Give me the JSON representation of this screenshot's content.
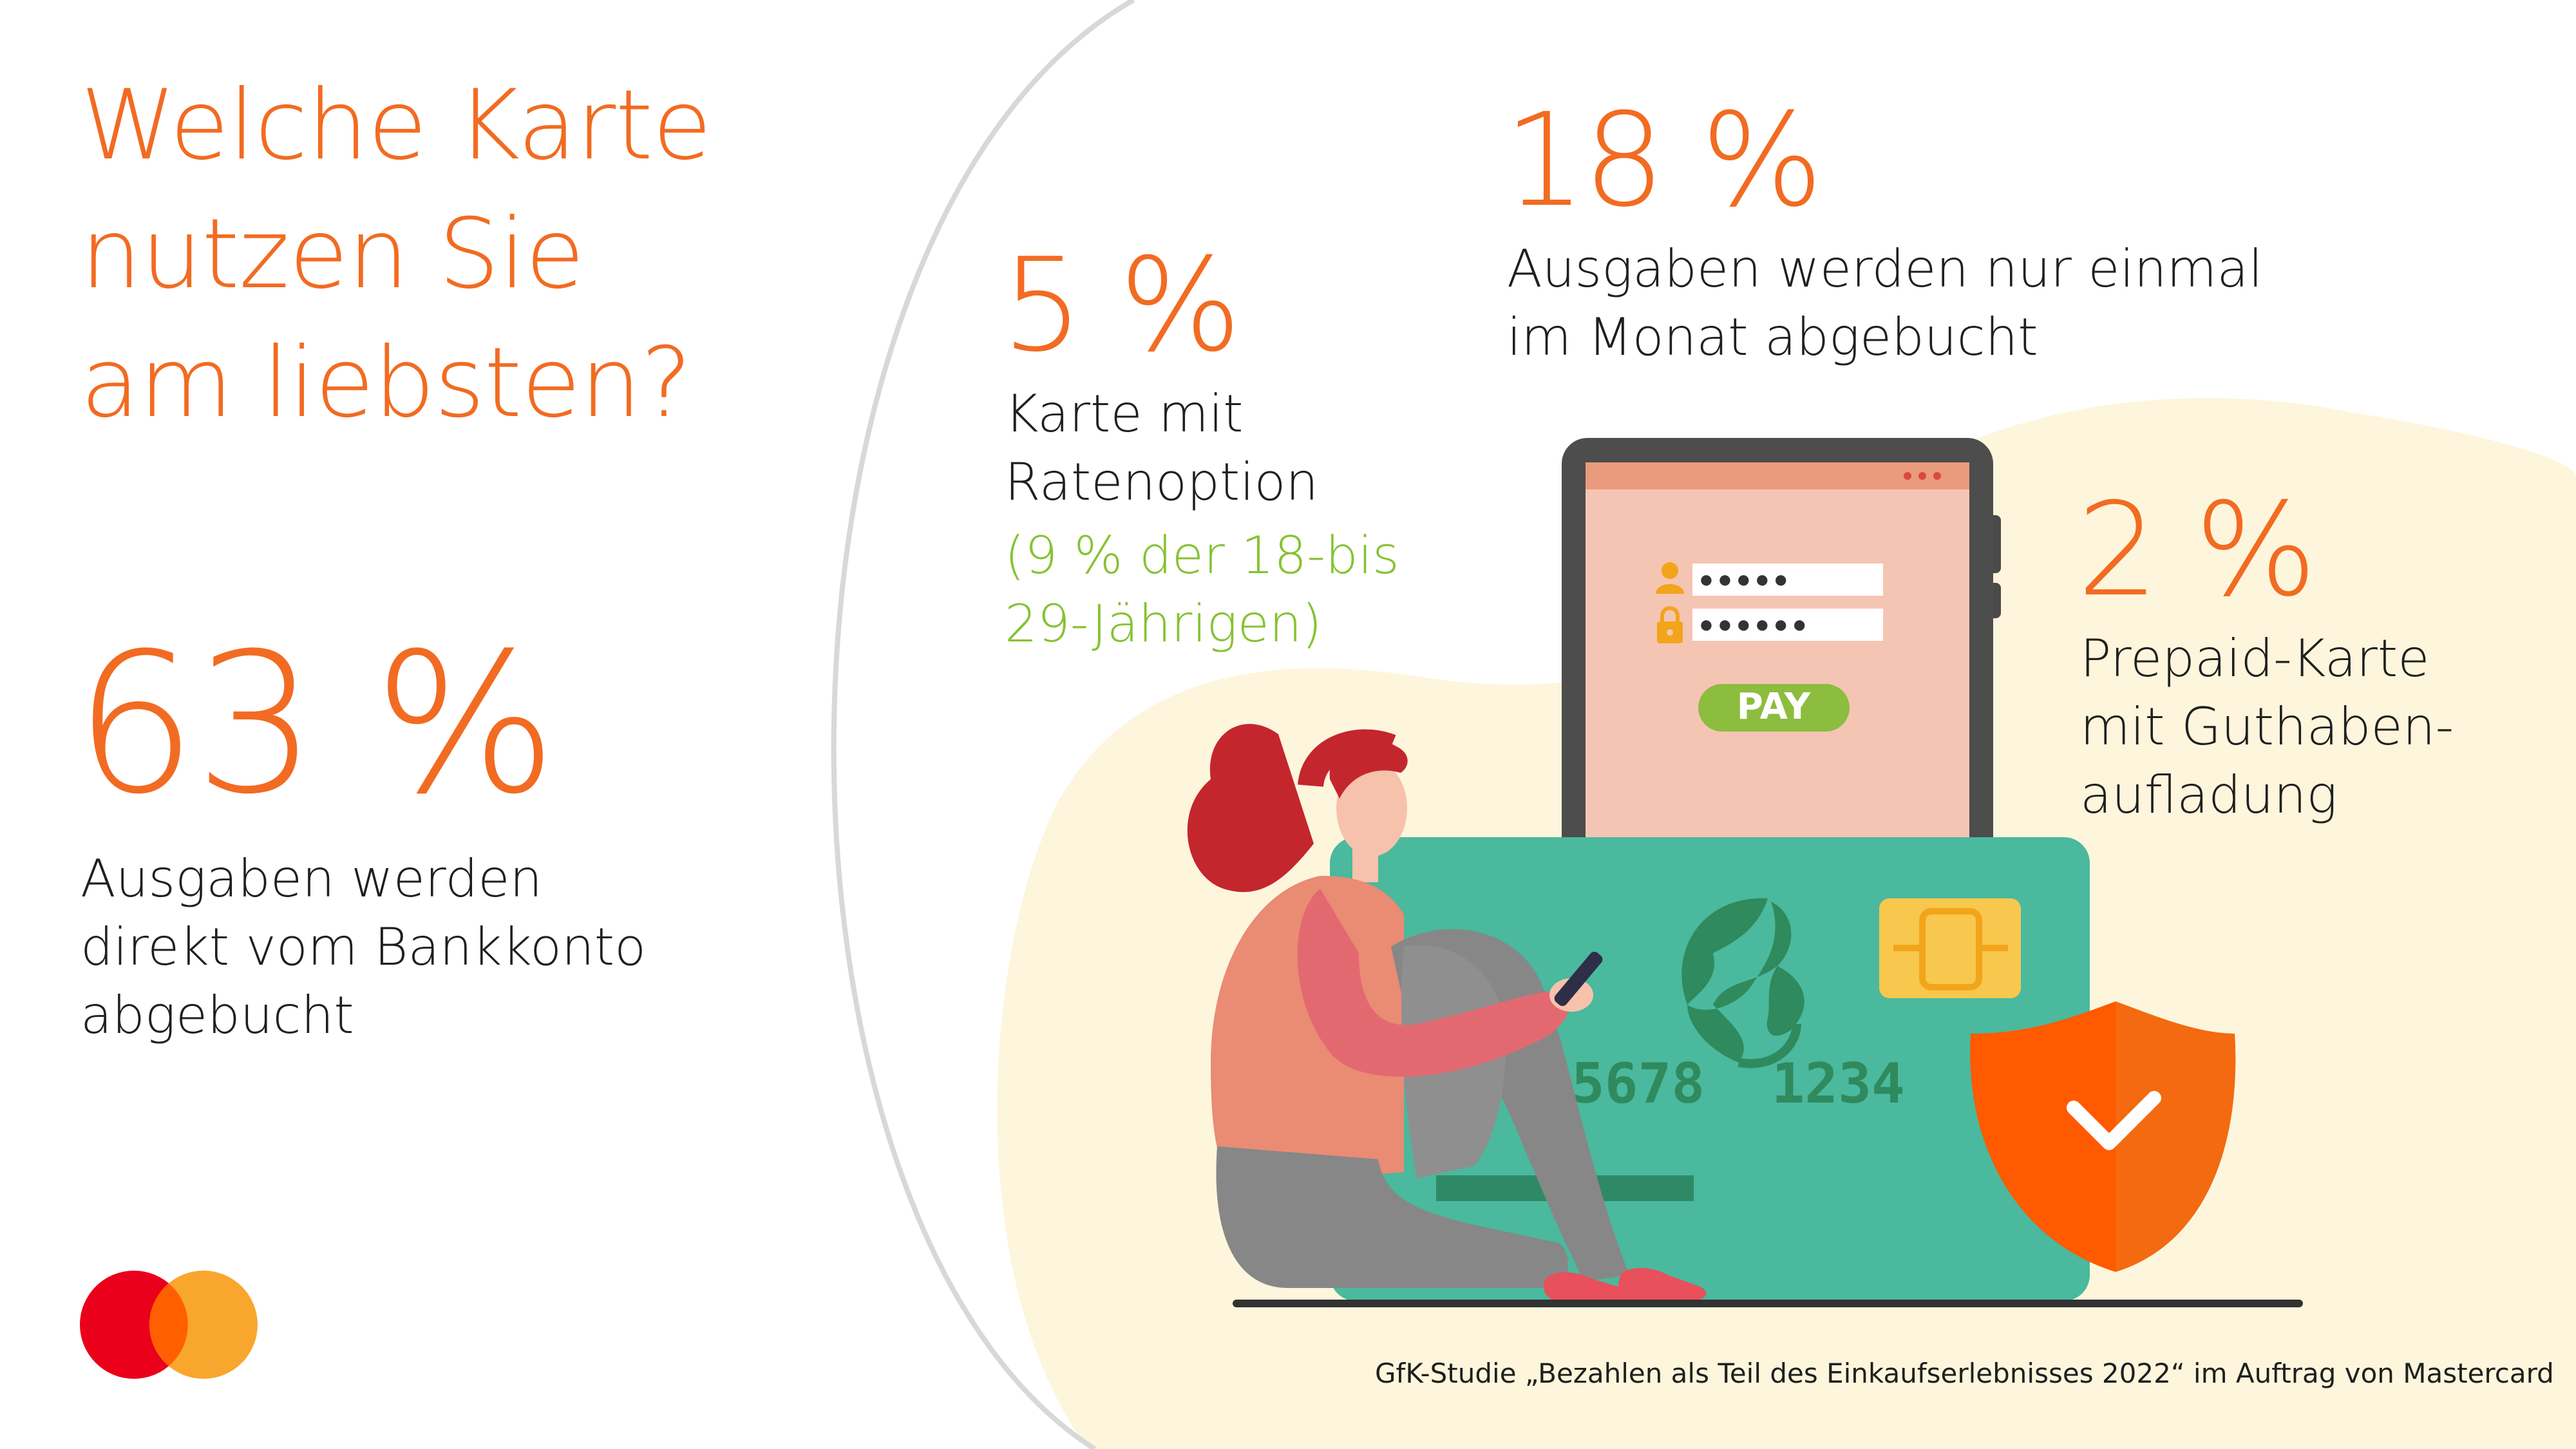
{
  "title_lines": [
    "Welche Karte",
    "nutzen Sie",
    "am liebsten?"
  ],
  "stats": {
    "s63": {
      "value": "63 %",
      "desc_lines": [
        "Ausgaben werden",
        "direkt vom Bankkonto",
        "abgebucht"
      ]
    },
    "s5": {
      "value": "5 %",
      "desc_lines": [
        "Karte mit",
        "Ratenoption"
      ],
      "note_lines": [
        "(9 % der 18-bis",
        "29-Jährigen)"
      ]
    },
    "s18": {
      "value": "18 %",
      "desc_lines": [
        "Ausgaben werden nur einmal",
        "im Monat abgebucht"
      ]
    },
    "s2": {
      "value": "2 %",
      "desc_lines": [
        "Prepaid-Karte",
        "mit Guthaben-",
        "aufladung"
      ]
    }
  },
  "illustration": {
    "pay_label": "PAY",
    "card_number": "5678  1234  5",
    "password_masks": [
      "●●●●●",
      "●●●●●●"
    ]
  },
  "source": "GfK-Studie „Bezahlen als Teil des Einkaufserlebnisses 2022“ im Auftrag von Mastercard",
  "colors": {
    "accent": "#f26b22",
    "note_green": "#86c232",
    "cream": "#fdf6dc",
    "card_green": "#4ab99d",
    "logo_red": "#eb001b",
    "logo_orange": "#f79e1b"
  },
  "icons": [
    "mastercard-logo",
    "user-icon",
    "lock-icon",
    "shield-check-icon",
    "globe-icon",
    "chip-icon"
  ]
}
